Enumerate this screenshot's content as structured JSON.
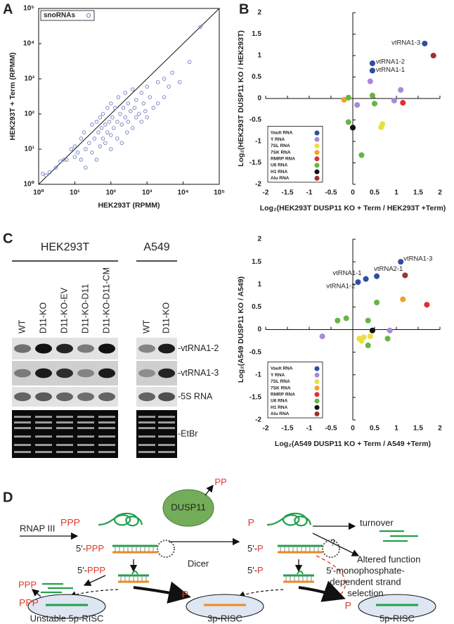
{
  "panel_labels": [
    "A",
    "B",
    "C",
    "D"
  ],
  "chart_data": [
    {
      "type": "scatter",
      "xlabel": "HEK293T (RPMM)",
      "ylabel": "HEK293T + Term (RPMM)",
      "xscale": "log",
      "yscale": "log",
      "xlim": [
        1,
        100000
      ],
      "ylim": [
        1,
        100000
      ],
      "xticks": [
        {
          "value": 1,
          "label": "10⁰"
        },
        {
          "value": 10,
          "label": "10¹"
        },
        {
          "value": 100,
          "label": "10²"
        },
        {
          "value": 1000,
          "label": "10³"
        },
        {
          "value": 10000,
          "label": "10⁴"
        },
        {
          "value": 100000,
          "label": "10⁵"
        }
      ],
      "yticks": [
        {
          "value": 1,
          "label": "10⁰"
        },
        {
          "value": 10,
          "label": "10¹"
        },
        {
          "value": 100,
          "label": "10²"
        },
        {
          "value": 1000,
          "label": "10³"
        },
        {
          "value": 10000,
          "label": "10⁴"
        },
        {
          "value": 100000,
          "label": "10⁵"
        }
      ],
      "identity_line": true,
      "legend": "upper left",
      "marker": "open",
      "series": [
        {
          "name": "snoRNAs",
          "color": "#6a7fc2",
          "x": [
            1.3,
            1.6,
            2,
            3,
            4,
            5,
            6,
            8,
            10,
            10,
            12,
            15,
            15,
            18,
            20,
            20,
            25,
            30,
            30,
            35,
            40,
            40,
            45,
            50,
            50,
            55,
            60,
            60,
            70,
            70,
            80,
            80,
            90,
            100,
            100,
            100,
            110,
            120,
            130,
            150,
            150,
            160,
            180,
            200,
            200,
            220,
            250,
            250,
            280,
            300,
            300,
            350,
            400,
            400,
            450,
            500,
            500,
            600,
            700,
            700,
            800,
            900,
            1000,
            1000,
            1200,
            1500,
            2000,
            2000,
            3000,
            3000,
            4000,
            5000,
            8000,
            15000,
            30000
          ],
          "values": [
            2,
            1.8,
            2.2,
            3,
            4.5,
            5,
            5,
            10,
            6,
            12,
            8,
            20,
            5,
            30,
            10,
            3,
            15,
            50,
            8,
            20,
            60,
            5,
            30,
            80,
            12,
            40,
            100,
            20,
            15,
            50,
            150,
            30,
            60,
            200,
            25,
            10,
            80,
            40,
            150,
            60,
            20,
            300,
            100,
            50,
            15,
            150,
            400,
            80,
            30,
            200,
            60,
            120,
            500,
            40,
            150,
            250,
            80,
            100,
            400,
            60,
            200,
            120,
            600,
            80,
            300,
            150,
            800,
            200,
            1000,
            300,
            600,
            1500,
            800,
            3000,
            30000
          ]
        }
      ]
    },
    {
      "type": "scatter",
      "xlabel": "Log₂(HEK293T DUSP11 KO + Term / HEK293T +Term)",
      "ylabel": "Log₂(HEK293T DUSP11 KO / HEK293T)",
      "xlim": [
        -2,
        2
      ],
      "ylim": [
        -2,
        2
      ],
      "xticks": [
        -2,
        -1.5,
        -1,
        -0.5,
        0,
        0.5,
        1,
        1.5,
        2
      ],
      "yticks": [
        -2,
        -1.5,
        -1,
        -0.5,
        0,
        0.5,
        1,
        1.5,
        2
      ],
      "legend": "lower left",
      "marker": "filled",
      "series": [
        {
          "name": "Vault RNA",
          "color": "#2f4ea0",
          "x": [
            1.65,
            0.45,
            0.45
          ],
          "values": [
            1.28,
            0.82,
            0.65
          ],
          "labels": [
            "vtRNA1-3",
            "vtRNA1-2",
            "vtRNA1-1"
          ]
        },
        {
          "name": "Y RNA",
          "color": "#a88ad8",
          "x": [
            0.4,
            1.1,
            0.1,
            0.95
          ],
          "values": [
            0.4,
            0.2,
            -0.15,
            -0.05
          ]
        },
        {
          "name": "7SL RNA",
          "color": "#e8e040",
          "x": [
            0.68,
            0.65
          ],
          "values": [
            -0.6,
            -0.67
          ]
        },
        {
          "name": "7SK RNA",
          "color": "#f0a030",
          "x": [
            -0.2
          ],
          "values": [
            -0.03
          ]
        },
        {
          "name": "RMRP RNA",
          "color": "#e03030",
          "x": [
            1.15
          ],
          "values": [
            -0.1
          ]
        },
        {
          "name": "U6 RNA",
          "color": "#66b545",
          "x": [
            -0.1,
            0.45,
            0.2,
            -0.1,
            0.5
          ],
          "values": [
            0.02,
            0.07,
            -1.32,
            -0.55,
            -0.12
          ]
        },
        {
          "name": "H1 RNA",
          "color": "#111111",
          "x": [
            0.0
          ],
          "values": [
            -0.68
          ]
        },
        {
          "name": "Alu RNA",
          "color": "#a03030",
          "x": [
            1.85
          ],
          "values": [
            1.0
          ]
        }
      ]
    },
    {
      "type": "scatter",
      "xlabel": "Log₂(A549 DUSP11 KO + Term / A549 +Term)",
      "ylabel": "Log₂(A549 DUSP11 KO / A549)",
      "xlim": [
        -2,
        2
      ],
      "ylim": [
        -2,
        2
      ],
      "xticks": [
        -2,
        -1.5,
        -1,
        -0.5,
        0,
        0.5,
        1,
        1.5,
        2
      ],
      "yticks": [
        -2,
        -1.5,
        -1,
        -0.5,
        0,
        0.5,
        1,
        1.5,
        2
      ],
      "legend": "lower left",
      "marker": "filled",
      "series": [
        {
          "name": "Vault RNA",
          "color": "#2f4ea0",
          "x": [
            1.1,
            0.3,
            0.55,
            0.12
          ],
          "values": [
            1.5,
            1.12,
            1.18,
            1.05
          ],
          "labels": [
            "vtRNA1-3",
            "vtRNA1-1",
            "vtRNA2-1",
            "vtRNA1-2"
          ]
        },
        {
          "name": "Y RNA",
          "color": "#a88ad8",
          "x": [
            -0.7,
            0.85
          ],
          "values": [
            -0.15,
            -0.02
          ]
        },
        {
          "name": "7SL RNA",
          "color": "#e8e040",
          "x": [
            0.15,
            0.25,
            0.4,
            0.2
          ],
          "values": [
            -0.2,
            -0.17,
            -0.15,
            -0.25
          ]
        },
        {
          "name": "7SK RNA",
          "color": "#f0a030",
          "x": [
            1.15
          ],
          "values": [
            0.67
          ]
        },
        {
          "name": "RMRP RNA",
          "color": "#e03030",
          "x": [
            1.7
          ],
          "values": [
            0.55
          ]
        },
        {
          "name": "U6 RNA",
          "color": "#66b545",
          "x": [
            -0.35,
            -0.15,
            0.55,
            0.35,
            0.35,
            0.8
          ],
          "values": [
            0.2,
            0.25,
            0.6,
            0.2,
            -0.35,
            -0.2
          ]
        },
        {
          "name": "H1 RNA",
          "color": "#111111",
          "x": [
            0.45
          ],
          "values": [
            -0.02
          ]
        },
        {
          "name": "Alu RNA",
          "color": "#a03030",
          "x": [
            1.2
          ],
          "values": [
            1.2
          ]
        }
      ]
    }
  ],
  "blot": {
    "groups": [
      "HEK293T",
      "A549"
    ],
    "lanes": [
      "WT",
      "D11-KO",
      "D11-KO-EV",
      "D11-KO-D11",
      "D11-KO-D11-CM",
      "WT",
      "D11-KO"
    ],
    "rows": [
      "-vtRNA1-2",
      "-vtRNA1-3",
      "-5S RNA",
      "-EtBr"
    ]
  },
  "diagram": {
    "rnap": "RNAP III",
    "enzyme": "DUSP11",
    "dicer": "Dicer",
    "red_tags": [
      "PPP",
      "PP",
      "P",
      "PPP",
      "PPP",
      "P",
      "P"
    ],
    "prefixed": [
      {
        "prefix": "5'-",
        "tag": "PPP"
      },
      {
        "prefix": "5'-",
        "tag": "P"
      },
      {
        "prefix": "5'-",
        "tag": "PPP"
      },
      {
        "prefix": "5'-",
        "tag": "P"
      }
    ],
    "turnover": "turnover",
    "question": "?",
    "altered": "Altered function",
    "strand_selection": [
      "5'-monophosphate-",
      "dependent strand",
      "selection"
    ],
    "risc": [
      "Unstable 5p-RISC",
      "3p-RISC",
      "5p-RISC"
    ]
  }
}
